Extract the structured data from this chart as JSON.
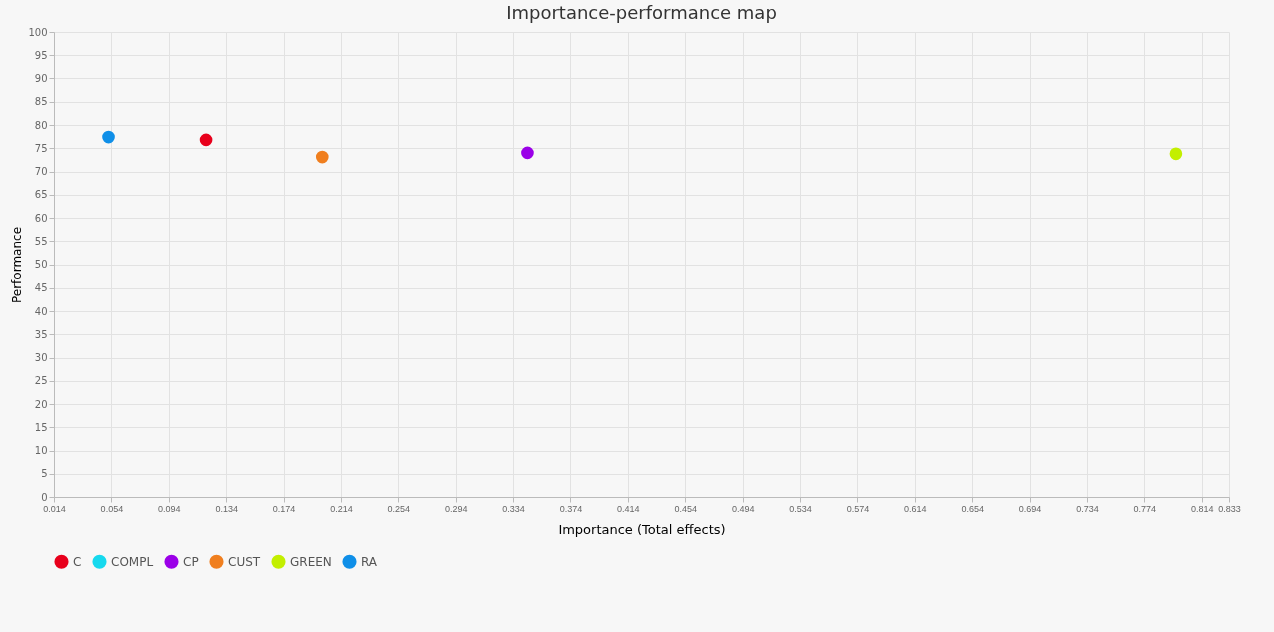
{
  "chart_data": {
    "type": "scatter",
    "title": "Importance-performance map",
    "xlabel": "Importance (Total effects)",
    "ylabel": "Performance",
    "xlim": [
      0.014,
      0.833
    ],
    "xticks": [
      0.014,
      0.054,
      0.094,
      0.134,
      0.174,
      0.214,
      0.254,
      0.294,
      0.334,
      0.374,
      0.414,
      0.454,
      0.494,
      0.534,
      0.574,
      0.614,
      0.654,
      0.694,
      0.734,
      0.774,
      0.814,
      0.833
    ],
    "ylim": [
      0,
      100
    ],
    "yticks": [
      0,
      5,
      10,
      15,
      20,
      25,
      30,
      35,
      40,
      45,
      50,
      55,
      60,
      65,
      70,
      75,
      80,
      85,
      90,
      95,
      100
    ],
    "grid": true,
    "legend": "bottom",
    "marker": "circle",
    "series": [
      {
        "name": "C",
        "color": "#e8001c",
        "x": [
          0.12
        ],
        "values": [
          76.8
        ]
      },
      {
        "name": "COMPL",
        "color": "#16d9ee",
        "x": [
          null
        ],
        "values": [
          null
        ]
      },
      {
        "name": "CP",
        "color": "#9b00e8",
        "x": [
          0.344
        ],
        "values": [
          74.0
        ]
      },
      {
        "name": "CUST",
        "color": "#f07f1f",
        "x": [
          0.201
        ],
        "values": [
          73.1
        ]
      },
      {
        "name": "GREEN",
        "color": "#c3ef00",
        "x": [
          0.796
        ],
        "values": [
          73.8
        ]
      },
      {
        "name": "RA",
        "color": "#0f8fe8",
        "x": [
          0.052
        ],
        "values": [
          77.4
        ]
      }
    ]
  }
}
